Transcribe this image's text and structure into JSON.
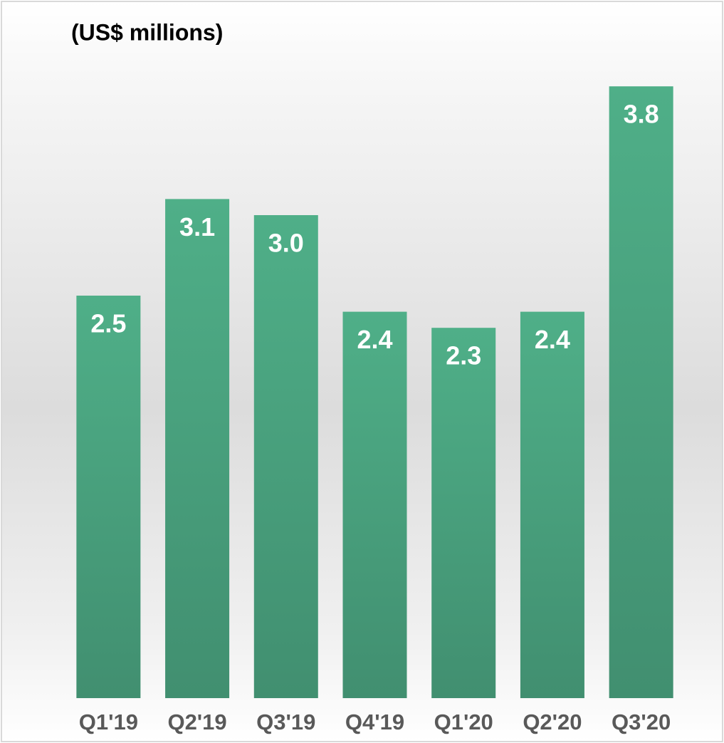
{
  "chart_data": {
    "type": "bar",
    "title": "(US$ millions)",
    "categories": [
      "Q1'19",
      "Q2'19",
      "Q3'19",
      "Q4'19",
      "Q1'20",
      "Q2'20",
      "Q3'20"
    ],
    "values": [
      2.5,
      3.1,
      3.0,
      2.4,
      2.3,
      2.4,
      3.8
    ],
    "value_labels": [
      "2.5",
      "3.1",
      "3.0",
      "2.4",
      "2.3",
      "2.4",
      "3.8"
    ],
    "color": "#4aa882",
    "ylim": [
      0,
      4
    ]
  }
}
